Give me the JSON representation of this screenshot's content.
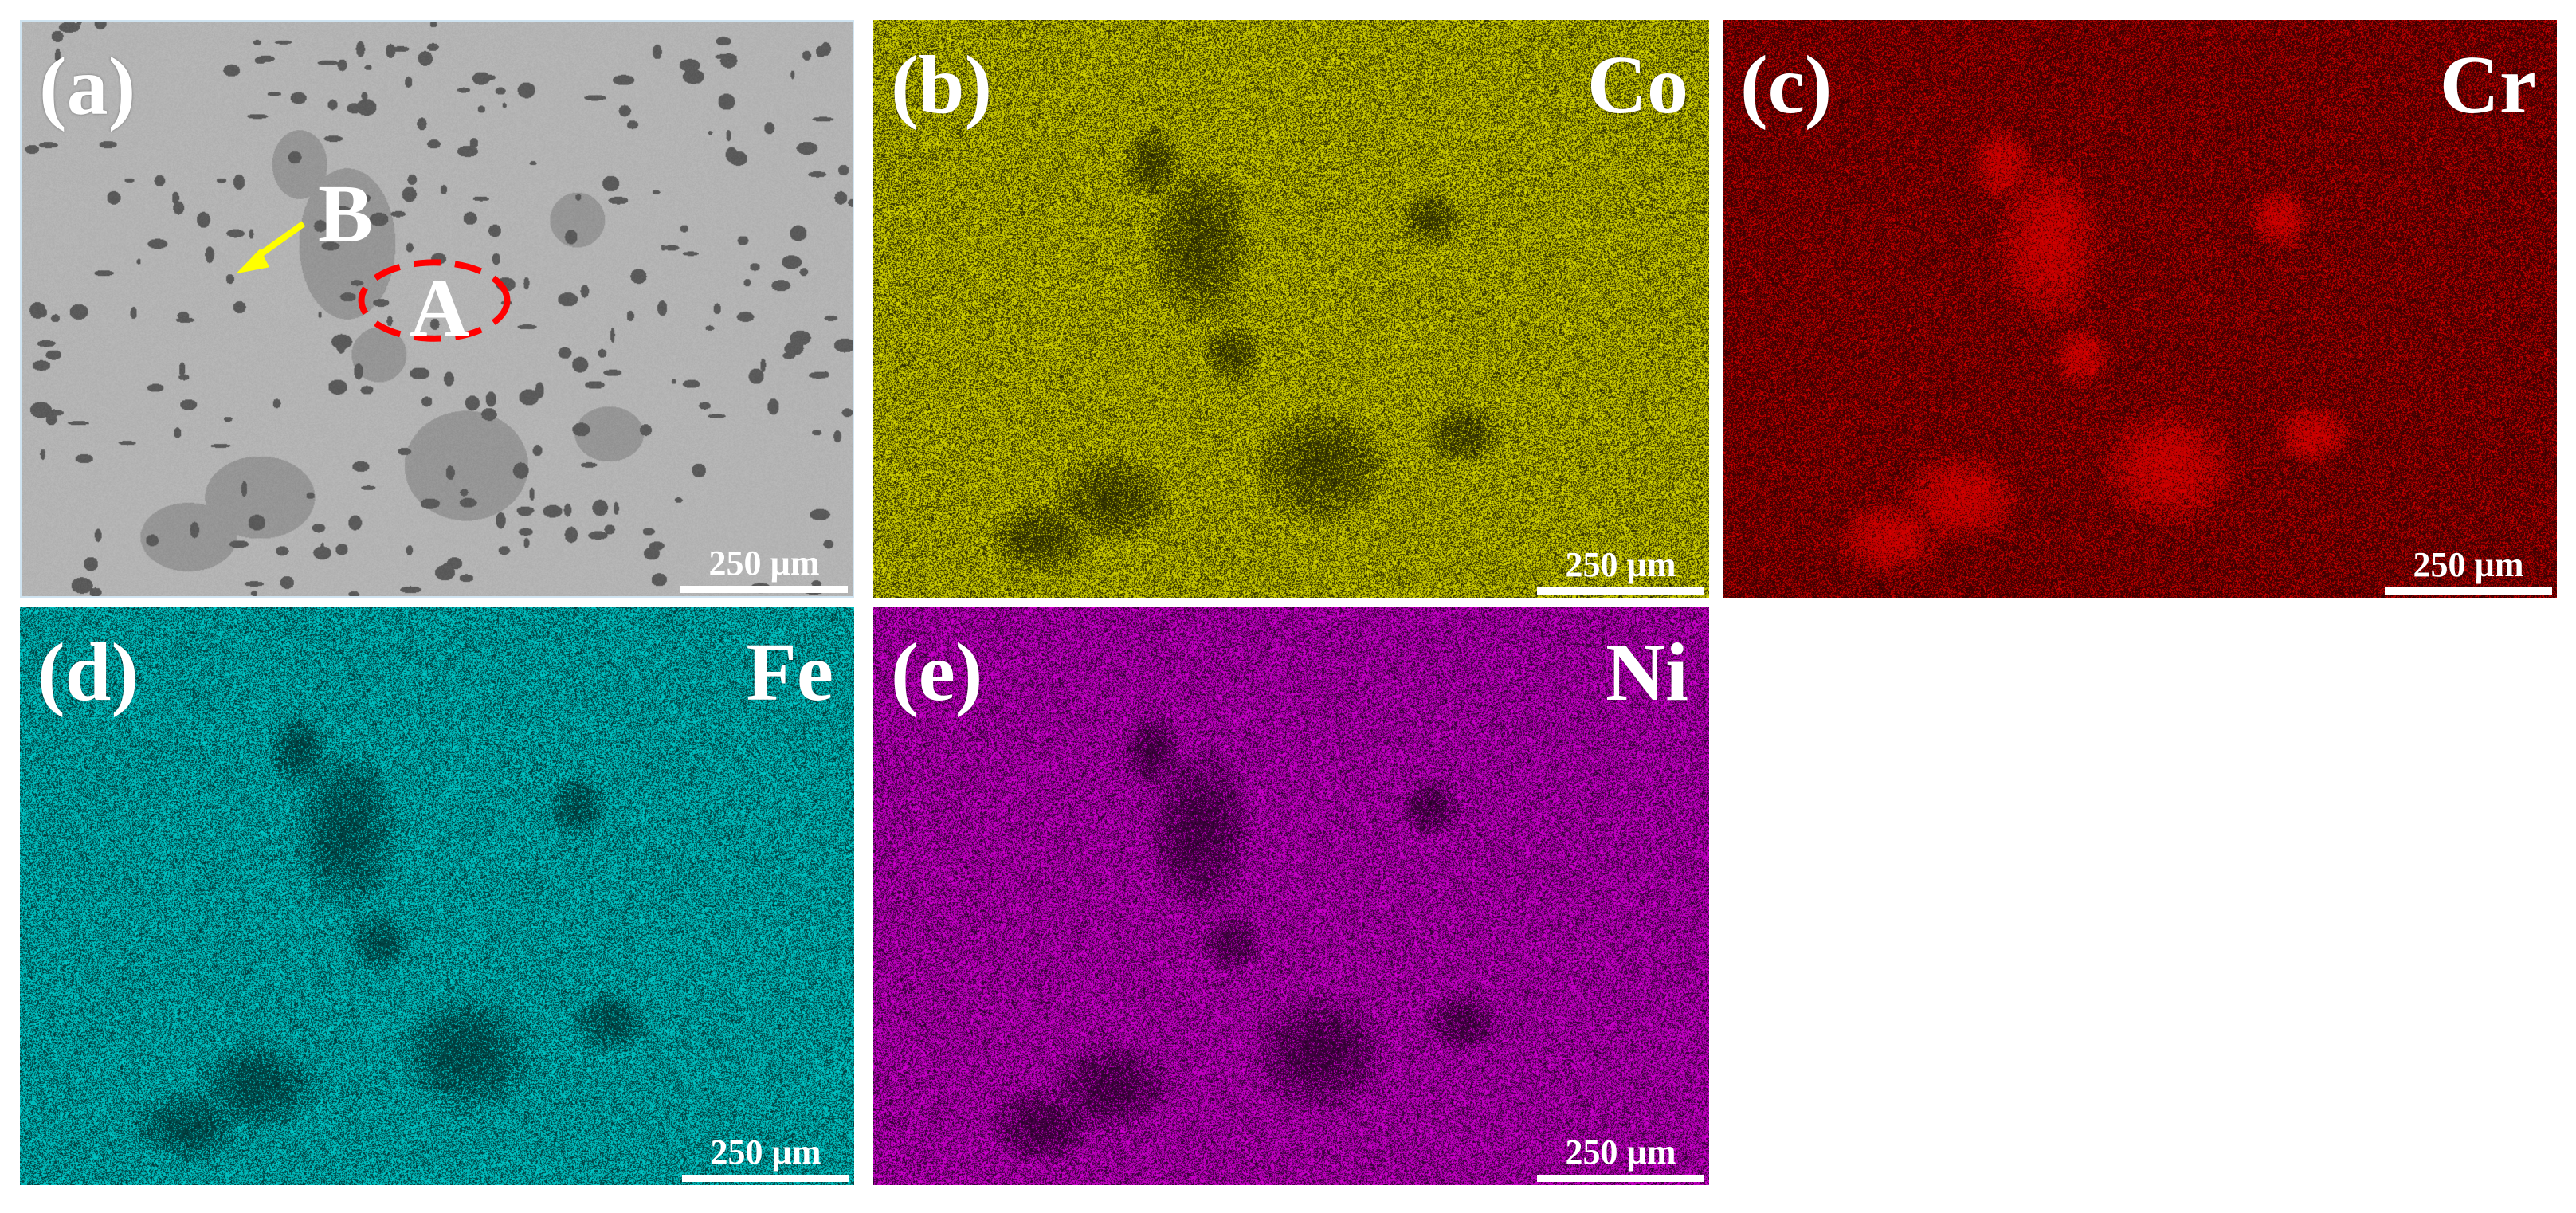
{
  "panels": [
    {
      "id": "a",
      "label": "(a)",
      "element": "",
      "scale": "250 µm",
      "kind": "sem",
      "colors": {
        "base": "#b4b4b4",
        "phase": "#969696",
        "pore": "#5a5a5a"
      }
    },
    {
      "id": "b",
      "label": "(b)",
      "element": "Co",
      "scale": "250 µm",
      "kind": "map",
      "colors": {
        "signal": "#e6e600",
        "background": "#1a1a00"
      }
    },
    {
      "id": "c",
      "label": "(c)",
      "element": "Cr",
      "scale": "250 µm",
      "kind": "map",
      "colors": {
        "signal": "#e00000",
        "background": "#2a0000"
      }
    },
    {
      "id": "d",
      "label": "(d)",
      "element": "Fe",
      "scale": "250 µm",
      "kind": "map",
      "colors": {
        "signal": "#00d6d6",
        "background": "#002a2a"
      }
    },
    {
      "id": "e",
      "label": "(e)",
      "element": "Ni",
      "scale": "250 µm",
      "kind": "map",
      "colors": {
        "signal": "#e000e0",
        "background": "#1f001f"
      }
    }
  ],
  "annotations": {
    "marker_a": "A",
    "marker_b": "B",
    "ellipse_color": "#ff0000",
    "arrow_color": "#ffff00"
  }
}
